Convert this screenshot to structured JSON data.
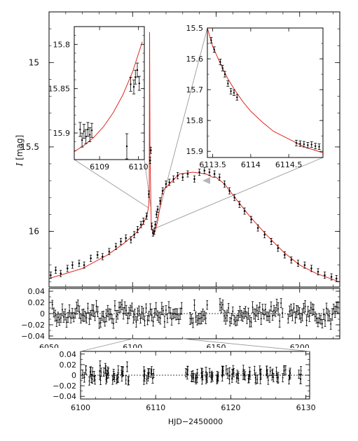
{
  "colors": {
    "model": "#e0271f",
    "data": "#000000",
    "frame": "#000000",
    "connector": "#9a9a9a"
  },
  "chart_data": [
    {
      "type": "scatter",
      "panel": "main-light-curve",
      "ylabel_italic": "I",
      "ylabel_unit": "[mag]",
      "xlim": [
        6050,
        6224
      ],
      "ylim": [
        16.33,
        14.7
      ],
      "y_reversed": true,
      "xticks": [
        6050,
        6100,
        6150,
        6200
      ],
      "yticks": [
        15,
        15.5,
        16
      ],
      "ytick_labels": [
        "15",
        "15.5",
        "16"
      ],
      "model_curve": {
        "x": [
          6050,
          6070,
          6085,
          6095,
          6102,
          6106,
          6108.5,
          6109.3,
          6109.7,
          6109.95,
          6110.15,
          6110.4,
          6111.2,
          6112.5,
          6113.5,
          6115,
          6118,
          6122,
          6128,
          6136,
          6144,
          6148,
          6150,
          6155,
          6162,
          6170,
          6180,
          6190,
          6200,
          6210,
          6224
        ],
        "y": [
          16.28,
          16.22,
          16.14,
          16.07,
          16.01,
          15.96,
          15.91,
          15.87,
          15.84,
          15.78,
          14.82,
          15.54,
          15.98,
          16.02,
          16.0,
          15.94,
          15.76,
          15.72,
          15.66,
          15.65,
          15.66,
          15.68,
          15.68,
          15.72,
          15.81,
          15.91,
          16.02,
          16.12,
          16.2,
          16.25,
          16.3
        ]
      },
      "data_points": {
        "x": [
          6051,
          6054,
          6057,
          6061,
          6064,
          6068,
          6071,
          6075,
          6079,
          6082,
          6086,
          6090,
          6093,
          6096,
          6099,
          6101,
          6103,
          6105,
          6106.5,
          6108.4,
          6109.7,
          6110.5,
          6110.9,
          6111.5,
          6112.2,
          6113,
          6113.6,
          6114.3,
          6115,
          6116.5,
          6118,
          6120,
          6122,
          6124.5,
          6127,
          6130,
          6133,
          6137,
          6140,
          6143,
          6146,
          6149,
          6152,
          6155,
          6158,
          6161,
          6164,
          6167,
          6171,
          6175,
          6179,
          6183,
          6187,
          6191,
          6195,
          6199,
          6203,
          6207,
          6211,
          6215,
          6219,
          6222
        ],
        "y": [
          16.26,
          16.23,
          16.25,
          16.22,
          16.2,
          16.19,
          16.2,
          16.16,
          16.14,
          16.15,
          16.12,
          16.09,
          16.06,
          16.04,
          16.05,
          16.02,
          15.99,
          15.96,
          15.94,
          15.91,
          15.78,
          15.58,
          15.52,
          15.97,
          16.01,
          16.0,
          15.96,
          15.9,
          15.87,
          15.82,
          15.76,
          15.72,
          15.71,
          15.69,
          15.67,
          15.68,
          15.66,
          15.69,
          15.65,
          15.64,
          15.65,
          15.66,
          15.68,
          15.72,
          15.76,
          15.8,
          15.84,
          15.88,
          15.93,
          15.98,
          16.02,
          16.06,
          16.1,
          16.14,
          16.17,
          16.19,
          16.2,
          16.22,
          16.24,
          16.26,
          16.27,
          16.28
        ]
      }
    },
    {
      "type": "line",
      "panel": "inset-left",
      "xlim": [
        6108.35,
        6110.15
      ],
      "ylim": [
        15.93,
        15.78
      ],
      "y_reversed": true,
      "xticks": [
        6109,
        6110
      ],
      "yticks": [
        15.8,
        15.85,
        15.9
      ],
      "ytick_labels": [
        "15.8",
        "15.85",
        "15.9"
      ],
      "model_curve": {
        "x": [
          6108.35,
          6108.6,
          6108.85,
          6109.1,
          6109.35,
          6109.6,
          6109.85,
          6110.1
        ],
        "y": [
          15.921,
          15.914,
          15.905,
          15.893,
          15.877,
          15.857,
          15.831,
          15.797
        ]
      },
      "data_points": {
        "x": [
          6108.5,
          6108.55,
          6108.6,
          6108.65,
          6108.7,
          6108.75,
          6108.8,
          6109.7,
          6109.8,
          6109.88,
          6109.92,
          6109.97,
          6110.02
        ],
        "y": [
          15.896,
          15.908,
          15.898,
          15.904,
          15.896,
          15.902,
          15.897,
          15.915,
          15.845,
          15.848,
          15.837,
          15.829,
          15.844
        ]
      }
    },
    {
      "type": "line",
      "panel": "inset-right",
      "xlim": [
        6113.43,
        6114.95
      ],
      "ylim": [
        15.92,
        15.5
      ],
      "y_reversed": true,
      "xticks": [
        6113.5,
        6114,
        6114.5
      ],
      "xtick_labels": [
        "6113.5",
        "6114",
        "6114.5"
      ],
      "yticks": [
        15.5,
        15.6,
        15.7,
        15.8,
        15.9
      ],
      "ytick_labels": [
        "15.5",
        "15.6",
        "15.7",
        "15.8",
        "15.9"
      ],
      "model_curve": {
        "x": [
          6113.43,
          6113.5,
          6113.6,
          6113.7,
          6113.8,
          6113.9,
          6114.0,
          6114.15,
          6114.3,
          6114.5,
          6114.7,
          6114.95
        ],
        "y": [
          15.5,
          15.56,
          15.615,
          15.665,
          15.705,
          15.74,
          15.77,
          15.805,
          15.835,
          15.86,
          15.885,
          15.905
        ]
      },
      "data_points": {
        "x": [
          6113.48,
          6113.52,
          6113.6,
          6113.63,
          6113.66,
          6113.7,
          6113.74,
          6113.78,
          6113.82,
          6114.6,
          6114.65,
          6114.7,
          6114.75,
          6114.8,
          6114.85,
          6114.9
        ],
        "y": [
          15.54,
          15.57,
          15.61,
          15.63,
          15.65,
          15.68,
          15.705,
          15.71,
          15.725,
          15.873,
          15.875,
          15.877,
          15.88,
          15.878,
          15.883,
          15.885
        ]
      }
    },
    {
      "type": "scatter",
      "panel": "residuals-full",
      "xlim": [
        6050,
        6224
      ],
      "ylim": [
        -0.045,
        0.045
      ],
      "xticks": [
        6050,
        6100,
        6150,
        6200
      ],
      "yticks": [
        0.04,
        0.02,
        0,
        -0.02,
        -0.04
      ],
      "ytick_labels": [
        "0.04",
        "0.02",
        "0",
        "−0.02",
        "−0.04"
      ],
      "zero_line": true
    },
    {
      "type": "scatter",
      "panel": "residuals-zoom",
      "xlim": [
        6100,
        6130.5
      ],
      "ylim": [
        -0.045,
        0.045
      ],
      "xticks": [
        6100,
        6110,
        6120,
        6130
      ],
      "yticks": [
        0.04,
        0.02,
        0,
        -0.02,
        -0.04
      ],
      "ytick_labels": [
        "0.04",
        "0.02",
        "0",
        "−0.02",
        "−0.04"
      ],
      "xlabel": "HJD−2450000",
      "zero_line": true,
      "data_points": {
        "x": [
          6100.5,
          6101.3,
          6101.8,
          6102.6,
          6103.3,
          6103.7,
          6104.4,
          6105.0,
          6105.6,
          6106.2,
          6108.5,
          6109.0,
          6109.6,
          6114.2,
          6114.8,
          6115.5,
          6116.1,
          6116.7,
          6117.4,
          6118.2,
          6118.9,
          6119.6,
          6120.2,
          6121.0,
          6121.8,
          6122.5,
          6123.3,
          6124.0,
          6124.8,
          6125.5,
          6126.3,
          6127.1,
          6127.9,
          6129.3
        ],
        "y": [
          -0.004,
          0.006,
          -0.002,
          0.018,
          0.013,
          0.004,
          0.002,
          -0.004,
          0.007,
          0.016,
          -0.002,
          0.003,
          -0.006,
          0.002,
          -0.002,
          -0.005,
          0.004,
          0.006,
          -0.004,
          -0.002,
          0.008,
          0.003,
          0.002,
          -0.006,
          0.001,
          0.006,
          -0.005,
          0.002,
          0.008,
          0.0,
          -0.004,
          0.009,
          0.004,
          -0.007
        ]
      }
    }
  ]
}
